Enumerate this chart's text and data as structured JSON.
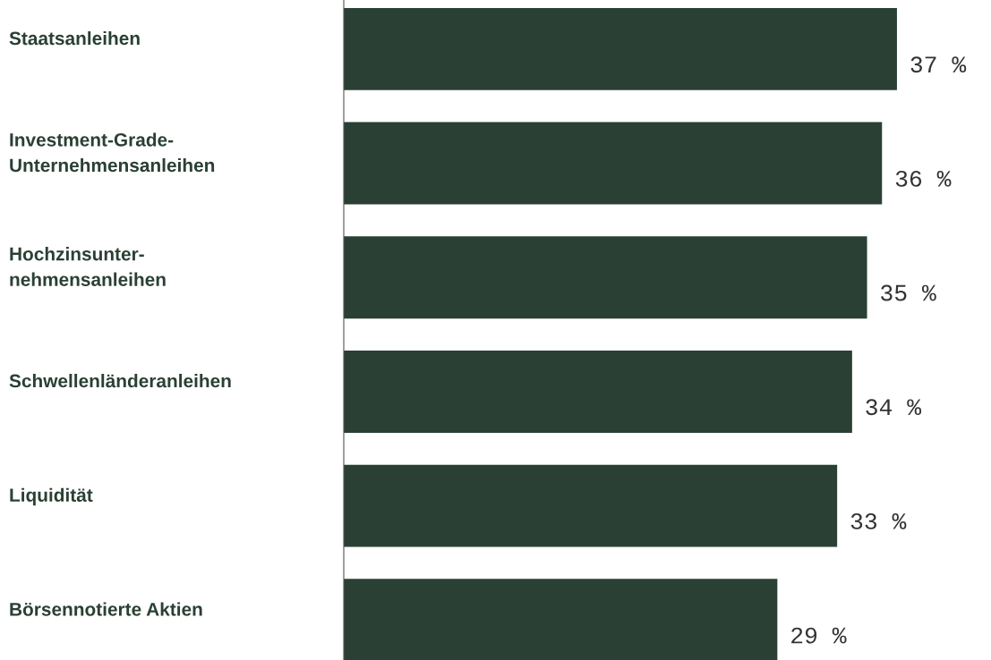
{
  "chart_data": {
    "type": "bar",
    "orientation": "horizontal",
    "categories": [
      "Staatsanleihen",
      "Investment-Grade-\nUnternehmensanleihen",
      "Hochzinsunter-\nnehmensanleihen",
      "Schwellenländeranleihen",
      "Liquidität",
      "Börsennotierte Aktien"
    ],
    "values": [
      37,
      36,
      35,
      34,
      33,
      29
    ],
    "value_labels": [
      "37 %",
      "36 %",
      "35 %",
      "34 %",
      "33 %",
      "29 %"
    ],
    "color": "#2a4034"
  }
}
